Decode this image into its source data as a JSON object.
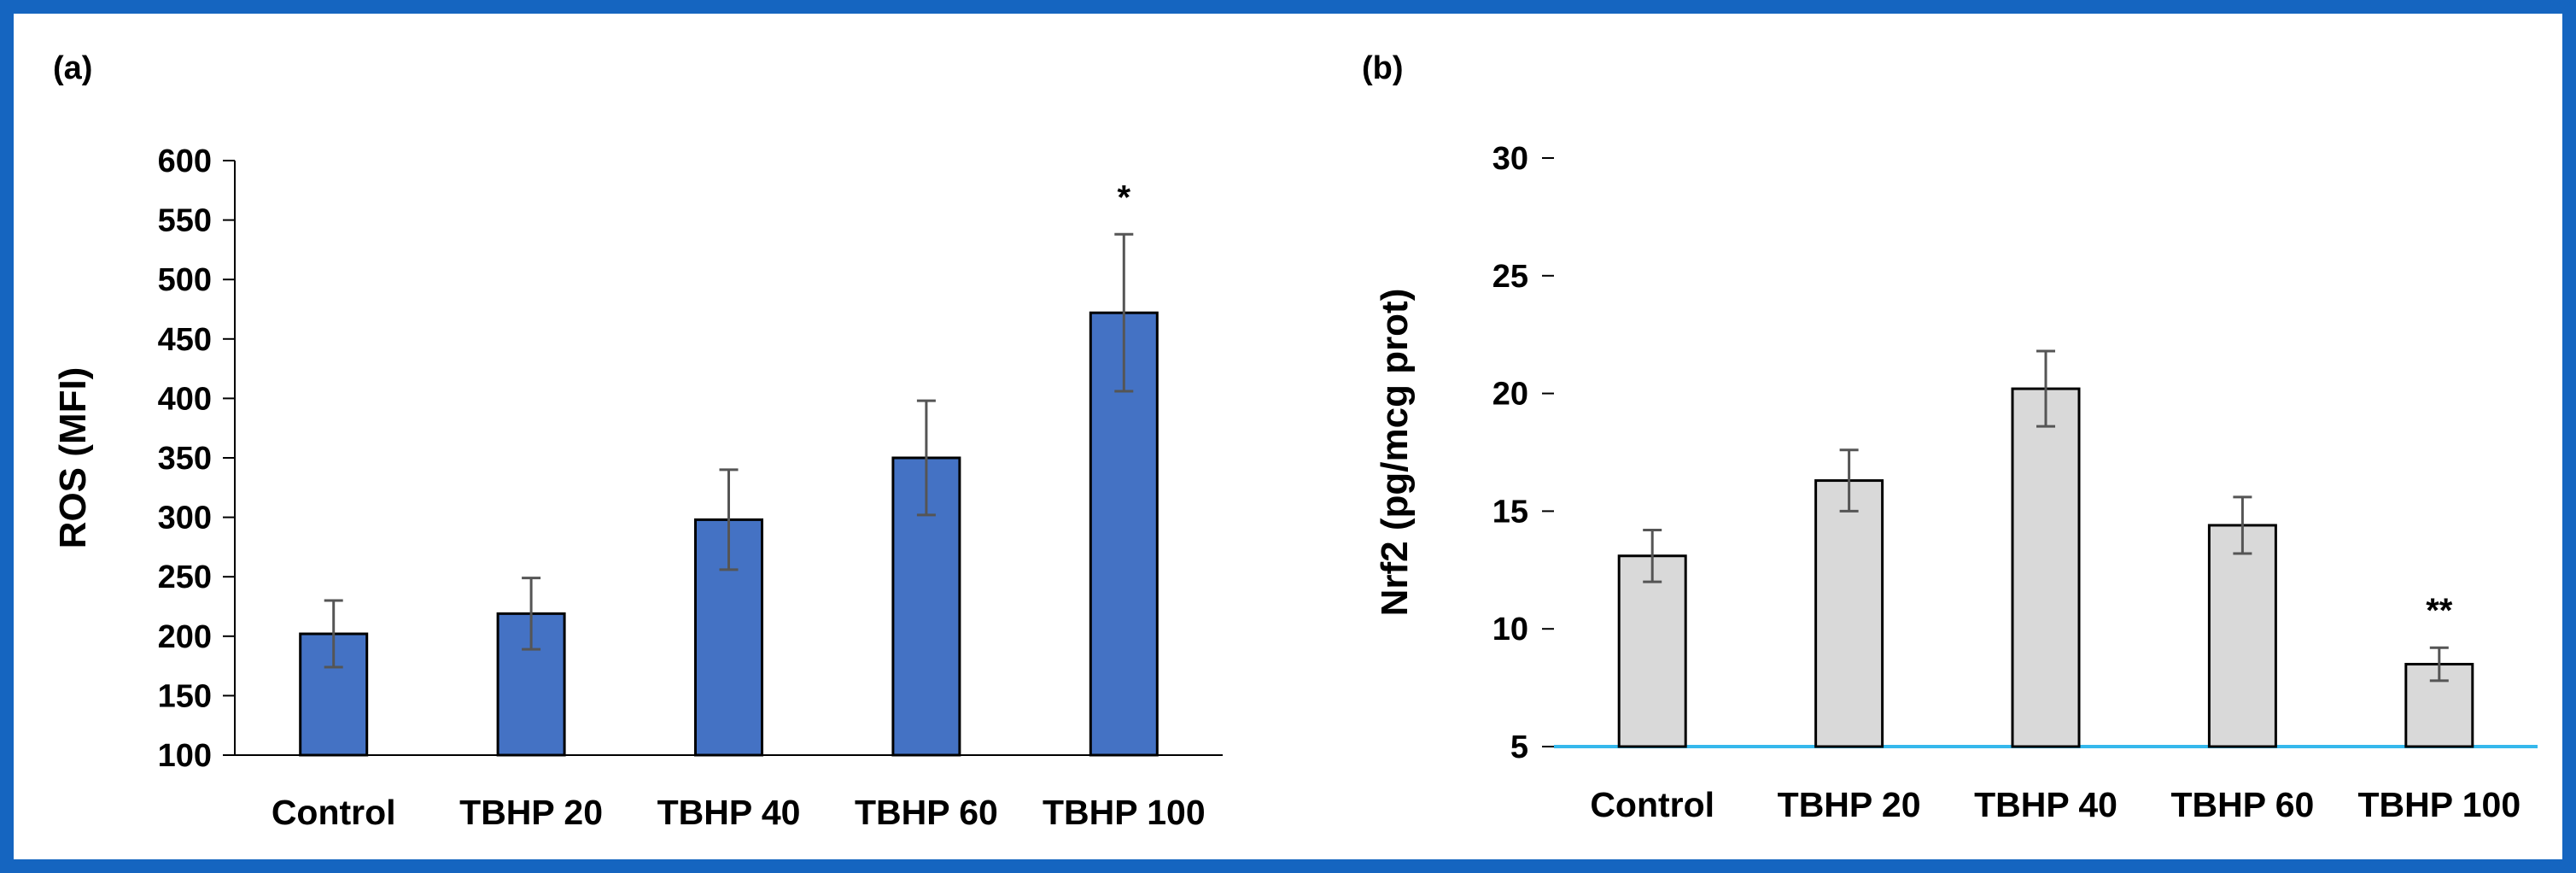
{
  "colors": {
    "frame": "#1565C0",
    "bar_a": "#4472C4",
    "bar_b": "#D9D9D9",
    "baseline_b": "#35B8EC",
    "errorbar": "#555555"
  },
  "chart_data": [
    {
      "panel": "(a)",
      "type": "bar",
      "categories": [
        "Control",
        "TBHP 20",
        "TBHP 40",
        "TBHP 60",
        "TBHP 100"
      ],
      "values": [
        202,
        219,
        298,
        350,
        472
      ],
      "errors": [
        28,
        30,
        42,
        48,
        66
      ],
      "significance": [
        "",
        "",
        "",
        "",
        "*"
      ],
      "ylabel": "ROS (MFI)",
      "xlabel": "",
      "ylim": [
        100,
        600
      ],
      "yticks": [
        "100",
        "150",
        "200",
        "250",
        "300",
        "350",
        "400",
        "450",
        "500",
        "550",
        "600"
      ],
      "grid": false
    },
    {
      "panel": "(b)",
      "type": "bar",
      "categories": [
        "Control",
        "TBHP 20",
        "TBHP 40",
        "TBHP 60",
        "TBHP 100"
      ],
      "values": [
        13.1,
        16.3,
        20.2,
        14.4,
        8.5
      ],
      "errors": [
        1.1,
        1.3,
        1.6,
        1.2,
        0.7
      ],
      "significance": [
        "",
        "",
        "",
        "",
        "**"
      ],
      "ylabel": "Nrf2 (pg/mcg prot)",
      "xlabel": "",
      "ylim": [
        5,
        30
      ],
      "yticks": [
        "5",
        "10",
        "15",
        "20",
        "25",
        "30"
      ],
      "grid": false
    }
  ]
}
